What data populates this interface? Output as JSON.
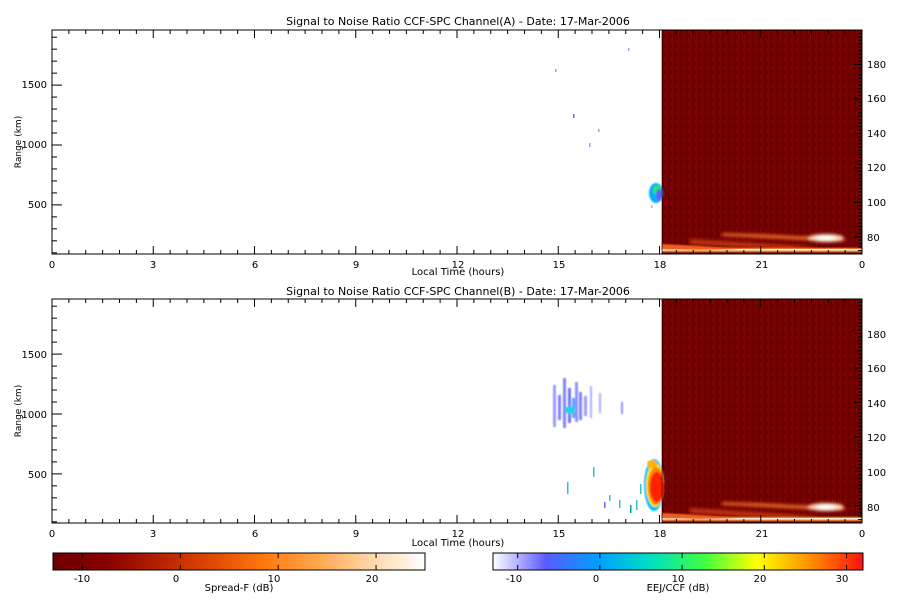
{
  "chart_data": [
    {
      "type": "heatmap",
      "title": "Signal to Noise Ratio CCF-SPC Channel(A) - Date: 17-Mar-2006",
      "xlabel": "Local Time (hours)",
      "ylabel": "Range (km)",
      "xlim": [
        0,
        24
      ],
      "x_ticks": [
        "0",
        "3",
        "6",
        "9",
        "12",
        "15",
        "18",
        "21",
        "0"
      ],
      "ylim": [
        90,
        1960
      ],
      "y_ticks": [
        "500",
        "1000",
        "1500"
      ],
      "y2lim": [
        70,
        200
      ],
      "y2_ticks": [
        "80",
        "100",
        "120",
        "140",
        "160",
        "180"
      ],
      "grid": false,
      "regions": [
        {
          "name": "Spread-F",
          "x_range": [
            0,
            18
          ],
          "y_axis": "Range (km)",
          "colorbar": "Spread-F (dB)"
        },
        {
          "name": "EEJ/CCF",
          "x_range": [
            18,
            24
          ],
          "y_axis": "right",
          "colorbar": "EEJ/CCF (dB)",
          "background_db": -11
        }
      ],
      "echoes": [
        {
          "region": "Spread-F",
          "t": [
            17.8,
            18.0
          ],
          "range_km": [
            480,
            680
          ],
          "peak_db": 2
        },
        {
          "region": "Spread-F",
          "t": [
            16.4,
            17.2
          ],
          "range_km": [
            1000,
            1800
          ],
          "peak_db": -10
        },
        {
          "region": "EEJ/CCF",
          "t": [
            20.2,
            24.0
          ],
          "y": [
            71,
            92
          ],
          "peak_db": 25
        }
      ]
    },
    {
      "type": "heatmap",
      "title": "Signal to Noise Ratio CCF-SPC Channel(B) - Date: 17-Mar-2006",
      "xlabel": "Local Time (hours)",
      "ylabel": "Range (km)",
      "xlim": [
        0,
        24
      ],
      "x_ticks": [
        "0",
        "3",
        "6",
        "9",
        "12",
        "15",
        "18",
        "21",
        "0"
      ],
      "ylim": [
        90,
        1960
      ],
      "y_ticks": [
        "500",
        "1000",
        "1500"
      ],
      "y2lim": [
        70,
        200
      ],
      "y2_ticks": [
        "80",
        "100",
        "120",
        "140",
        "160",
        "180"
      ],
      "grid": false,
      "regions": [
        {
          "name": "Spread-F",
          "x_range": [
            0,
            18
          ],
          "y_axis": "Range (km)",
          "colorbar": "Spread-F (dB)"
        },
        {
          "name": "EEJ/CCF",
          "x_range": [
            18,
            24
          ],
          "y_axis": "right",
          "colorbar": "EEJ/CCF (dB)",
          "background_db": -11
        }
      ],
      "echoes": [
        {
          "region": "Spread-F",
          "t": [
            14.8,
            16.3
          ],
          "range_km": [
            900,
            1340
          ],
          "peak_db": 5
        },
        {
          "region": "Spread-F",
          "t": [
            17.5,
            18.0
          ],
          "range_km": [
            200,
            620
          ],
          "peak_db": 32
        },
        {
          "region": "Spread-F",
          "t": [
            15.0,
            17.6
          ],
          "range_km": [
            190,
            470
          ],
          "peak_db": 5
        },
        {
          "region": "EEJ/CCF",
          "t": [
            20.2,
            24.0
          ],
          "y": [
            71,
            92
          ],
          "peak_db": 25
        }
      ]
    }
  ],
  "colorbars": [
    {
      "label": "Spread-F (dB)",
      "range": [
        -13,
        25
      ],
      "ticks": [
        "-10",
        "0",
        "10",
        "20"
      ],
      "colors": [
        "#6b0000",
        "#8a0000",
        "#b52000",
        "#e04a00",
        "#ff7a10",
        "#ffa850",
        "#ffd8a8",
        "#ffffff"
      ]
    },
    {
      "label": "EEJ/CCF (dB)",
      "range": [
        -13,
        32
      ],
      "ticks": [
        "-10",
        "0",
        "10",
        "20",
        "30"
      ],
      "colors": [
        "#ffffff",
        "#5a5aff",
        "#00a0ff",
        "#00e0c0",
        "#40ff40",
        "#ffff00",
        "#ff9000",
        "#ff1010"
      ]
    }
  ]
}
